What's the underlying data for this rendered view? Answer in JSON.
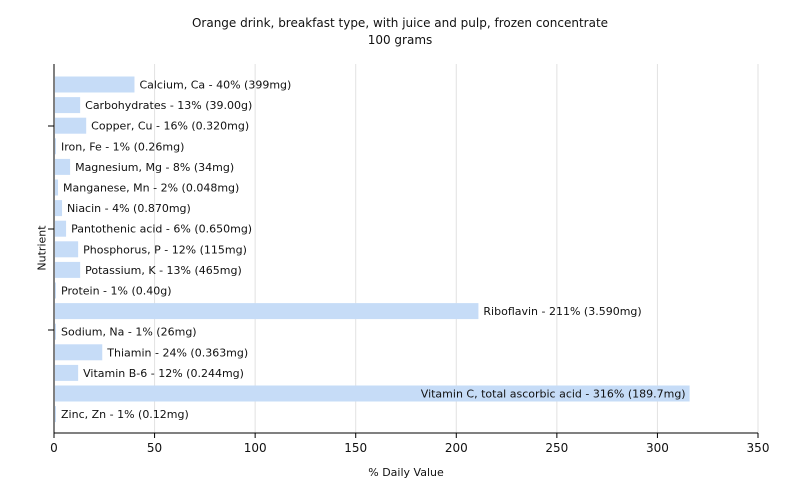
{
  "chart_data": {
    "type": "bar",
    "orientation": "horizontal",
    "title": "Orange drink, breakfast type, with juice and pulp, frozen concentrate",
    "subtitle": "100 grams",
    "xlabel": "% Daily Value",
    "ylabel": "Nutrient",
    "xlim": [
      0,
      350
    ],
    "xticks": [
      0,
      50,
      100,
      150,
      200,
      250,
      300,
      350
    ],
    "grid": true,
    "bar_color": "#c6dcf7",
    "categories": [
      "Calcium, Ca",
      "Carbohydrates",
      "Copper, Cu",
      "Iron, Fe",
      "Magnesium, Mg",
      "Manganese, Mn",
      "Niacin",
      "Pantothenic acid",
      "Phosphorus, P",
      "Potassium, K",
      "Protein",
      "Riboflavin",
      "Sodium, Na",
      "Thiamin",
      "Vitamin B-6",
      "Vitamin C, total ascorbic acid",
      "Zinc, Zn"
    ],
    "values": [
      40,
      13,
      16,
      1,
      8,
      2,
      4,
      6,
      12,
      13,
      1,
      211,
      1,
      24,
      12,
      316,
      1
    ],
    "labels": [
      "Calcium, Ca - 40% (399mg)",
      "Carbohydrates - 13% (39.00g)",
      "Copper, Cu - 16% (0.320mg)",
      "Iron, Fe - 1% (0.26mg)",
      "Magnesium, Mg - 8% (34mg)",
      "Manganese, Mn - 2% (0.048mg)",
      "Niacin - 4% (0.870mg)",
      "Pantothenic acid - 6% (0.650mg)",
      "Phosphorus, P - 12% (115mg)",
      "Potassium, K - 13% (465mg)",
      "Protein - 1% (0.40g)",
      "Riboflavin - 211% (3.590mg)",
      "Sodium, Na - 1% (26mg)",
      "Thiamin - 24% (0.363mg)",
      "Vitamin B-6 - 12% (0.244mg)",
      "Vitamin C, total ascorbic acid - 316% (189.7mg)",
      "Zinc, Zn - 1% (0.12mg)"
    ]
  }
}
